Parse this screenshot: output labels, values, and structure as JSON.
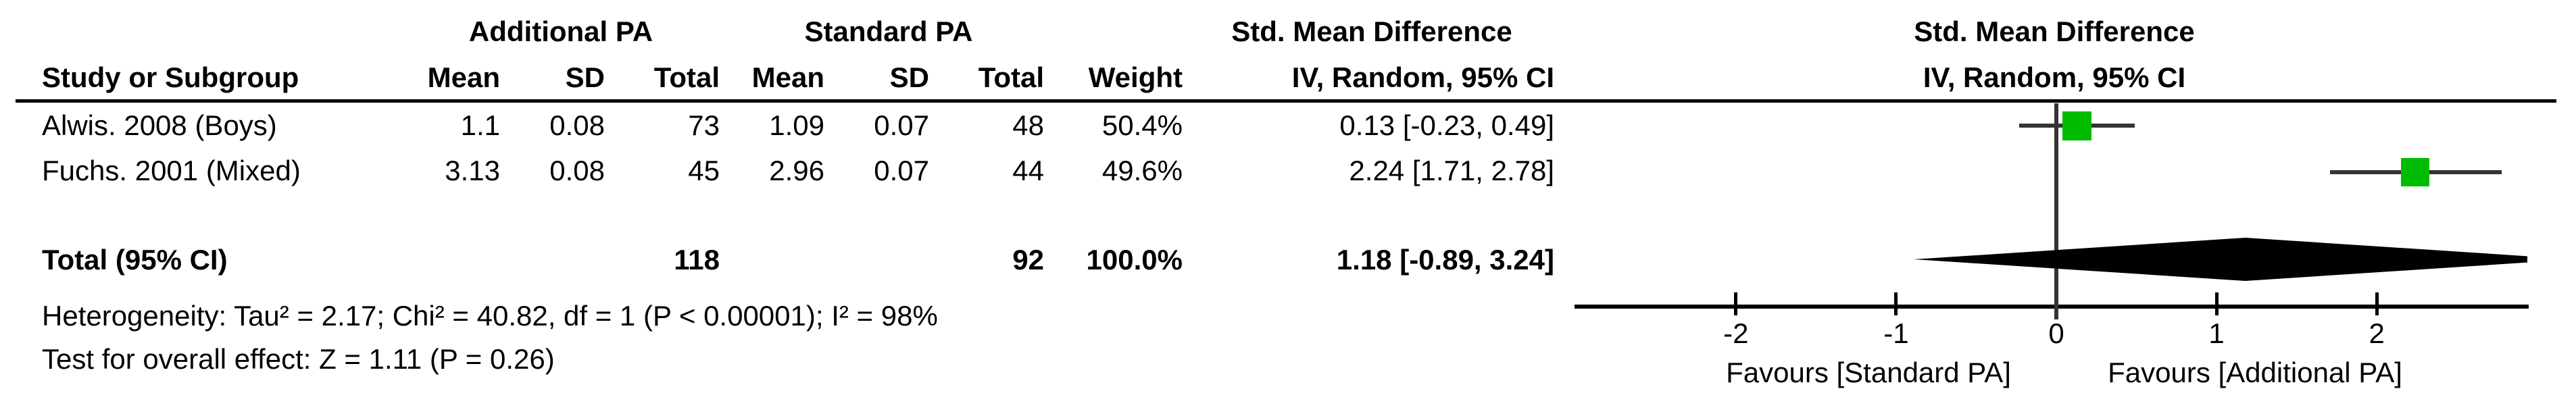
{
  "table": {
    "group_headers": {
      "group1": "Additional PA",
      "group2": "Standard PA",
      "effect": "Std. Mean Difference"
    },
    "col_headers": {
      "study": "Study or Subgroup",
      "mean": "Mean",
      "sd": "SD",
      "total": "Total",
      "weight": "Weight",
      "ci": "IV, Random, 95% CI"
    },
    "rows": [
      {
        "study": "Alwis. 2008 (Boys)",
        "mean1": "1.1",
        "sd1": "0.08",
        "total1": "73",
        "mean2": "1.09",
        "sd2": "0.07",
        "total2": "48",
        "weight": "50.4%",
        "ci": "0.13 [-0.23, 0.49]"
      },
      {
        "study": "Fuchs. 2001 (Mixed)",
        "mean1": "3.13",
        "sd1": "0.08",
        "total1": "45",
        "mean2": "2.96",
        "sd2": "0.07",
        "total2": "44",
        "weight": "49.6%",
        "ci": "2.24 [1.71, 2.78]"
      }
    ],
    "total_row": {
      "label": "Total (95% CI)",
      "total1": "118",
      "total2": "92",
      "weight": "100.0%",
      "ci": "1.18 [-0.89, 3.24]"
    },
    "footnotes": {
      "heterogeneity": "Heterogeneity: Tau² = 2.17; Chi² = 40.82, df = 1 (P < 0.00001); I² = 98%",
      "overall_effect": "Test for overall effect: Z = 1.11 (P = 0.26)"
    }
  },
  "plot": {
    "marker_color": "#00BC00",
    "line_color": "#343434",
    "axis_color": "#000000"
  },
  "chart_data": {
    "type": "forest",
    "effect_label": "Std. Mean Difference",
    "method_label": "IV, Random, 95% CI",
    "axis": {
      "ticks": [
        -2,
        -1,
        0,
        1,
        2
      ],
      "xlim_drawn": [
        -3,
        2.95
      ],
      "zero_line": 0
    },
    "favours": {
      "left": "Favours [Standard PA]",
      "right": "Favours [Additional PA]"
    },
    "studies": [
      {
        "name": "Alwis. 2008 (Boys)",
        "mean_additional": 1.1,
        "sd_additional": 0.08,
        "n_additional": 73,
        "mean_standard": 1.09,
        "sd_standard": 0.07,
        "n_standard": 48,
        "weight_pct": 50.4,
        "smd": 0.13,
        "ci_low": -0.23,
        "ci_high": 0.49
      },
      {
        "name": "Fuchs. 2001 (Mixed)",
        "mean_additional": 3.13,
        "sd_additional": 0.08,
        "n_additional": 45,
        "mean_standard": 2.96,
        "sd_standard": 0.07,
        "n_standard": 44,
        "weight_pct": 49.6,
        "smd": 2.24,
        "ci_low": 1.71,
        "ci_high": 2.78
      }
    ],
    "total": {
      "label": "Total (95% CI)",
      "n_additional": 118,
      "n_standard": 92,
      "weight_pct": 100.0,
      "smd": 1.18,
      "ci_low": -0.89,
      "ci_high": 3.24
    },
    "heterogeneity": {
      "tau2": 2.17,
      "chi2": 40.82,
      "df": 1,
      "p": "< 0.00001",
      "i2_pct": 98
    },
    "overall_effect": {
      "z": 1.11,
      "p": 0.26
    }
  }
}
